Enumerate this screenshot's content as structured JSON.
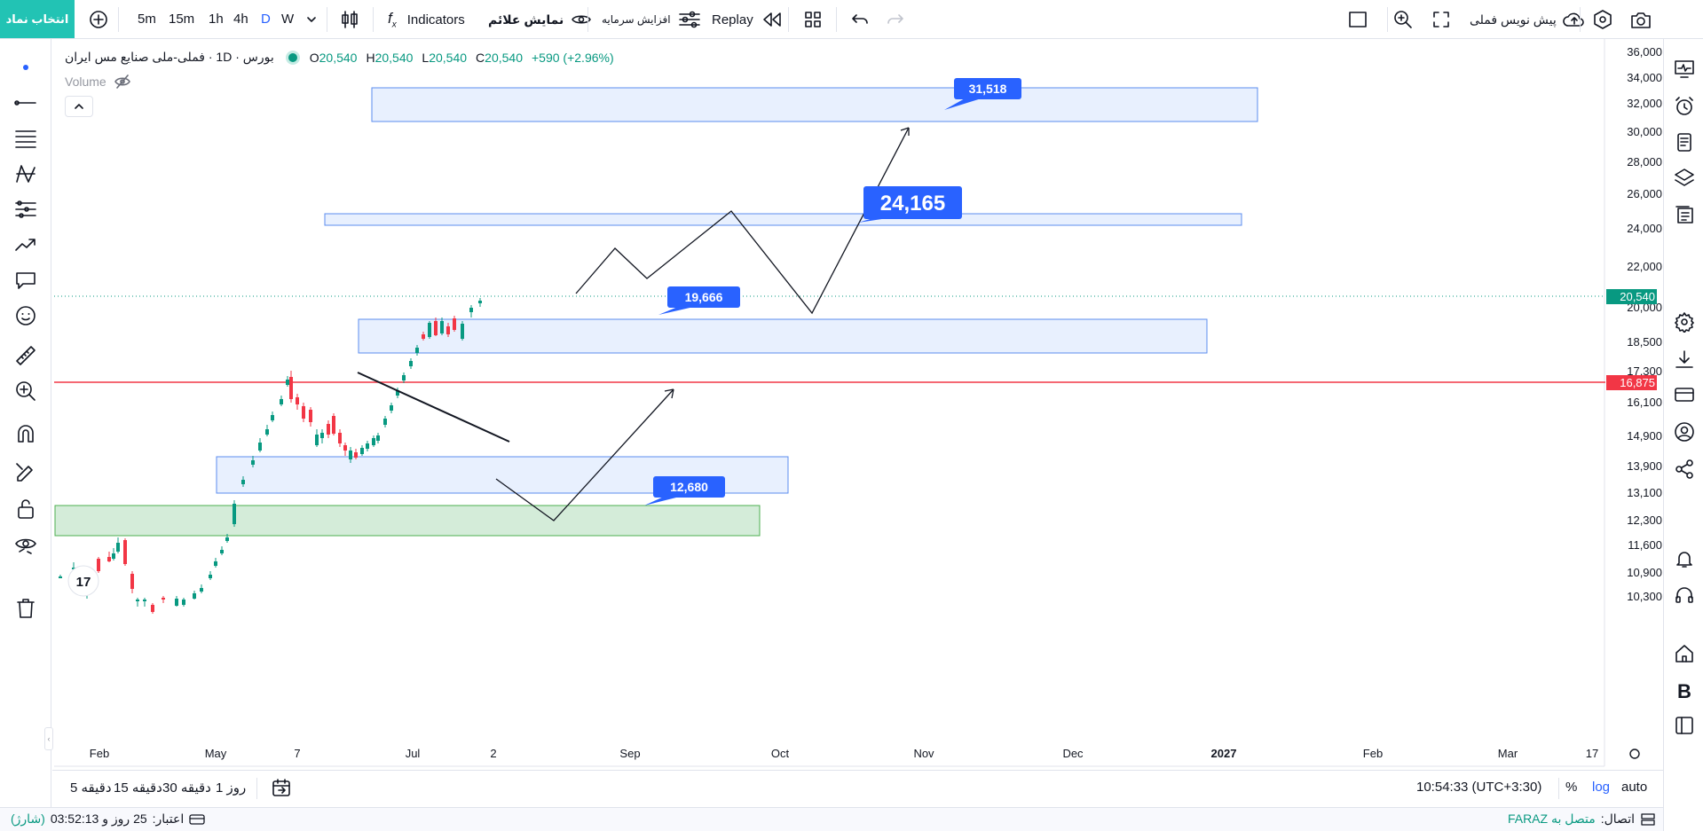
{
  "toolbar": {
    "symbol_search": "انتخاب نماد",
    "intervals": [
      "5m",
      "15m",
      "1h",
      "4h",
      "D",
      "W"
    ],
    "active_interval": "D",
    "indicators": "Indicators",
    "show_signals": "نمایش علائم",
    "capital_increase": "افزایش سرمایه",
    "replay": "Replay",
    "prebook_label": "پیش نویس فملی"
  },
  "legend": {
    "symbol": "بورس · 1D · فملی-ملی صنایع مس ایران",
    "open_label": "O",
    "open": "20,540",
    "high_label": "H",
    "high": "20,540",
    "low_label": "L",
    "low": "20,540",
    "close_label": "C",
    "close": "20,540",
    "change": "+590 (+2.96%)",
    "volume": "Volume"
  },
  "price_axis": {
    "ticks": [
      "36,000",
      "34,000",
      "32,000",
      "30,000",
      "28,000",
      "26,000",
      "24,000",
      "22,000",
      "20,000",
      "18,500",
      "17,300",
      "16,100",
      "14,900",
      "13,900",
      "13,100",
      "12,300",
      "11,600",
      "10,900",
      "10,300"
    ],
    "last_price": "20,540",
    "hline_price": "16,875"
  },
  "time_axis": {
    "ticks": [
      "Feb",
      "May",
      "7",
      "Jul",
      "2",
      "Sep",
      "Oct",
      "Nov",
      "Dec",
      "2027",
      "Feb",
      "Mar",
      "17"
    ]
  },
  "annotations": {
    "target_1": "31,518",
    "target_2": "24,165",
    "target_3": "19,666",
    "target_4": "12,680"
  },
  "bottom": {
    "ranges": [
      "5 دقیقه",
      "15 دقیقه",
      "30 دقیقه",
      "1 روز"
    ],
    "clock": "10:54:33 (UTC+3:30)",
    "percent": "%",
    "log": "log",
    "auto": "auto"
  },
  "status": {
    "connection_label": "اتصال:",
    "connection_value": "متصل به FARAZ",
    "credit_label": "اعتبار:",
    "credit_value": "25 روز و 03:52:13",
    "credit_note": "(شارژ)"
  },
  "colors": {
    "accent": "#2962ff",
    "teal": "#22c3b4",
    "up": "#089981",
    "down": "#f23645",
    "zone_fill": "#e8f0fe",
    "zone_border": "#5b8def",
    "green_zone": "#d4ecd9",
    "green_border": "#4caf50"
  }
}
